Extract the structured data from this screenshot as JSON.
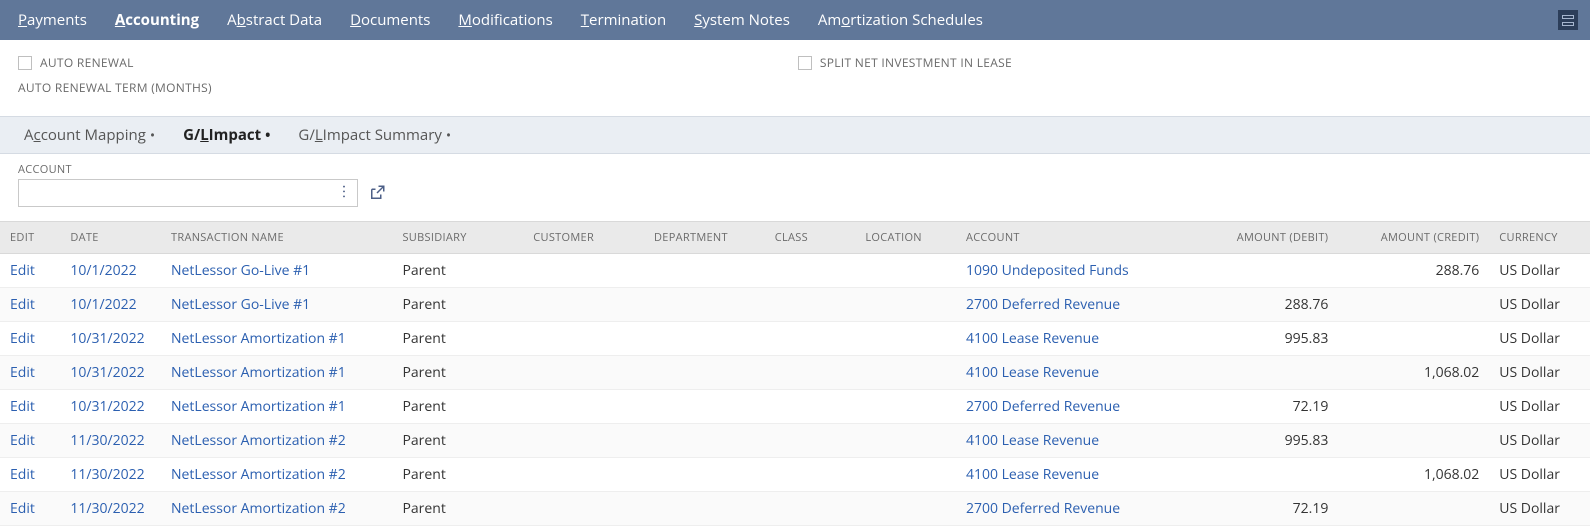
{
  "colors": {
    "nav_bg": "#607799",
    "link": "#2b5fb0",
    "subtab_bg": "#eaeef3",
    "thead_bg": "#eaeaea",
    "muted_text": "#6a6a6a"
  },
  "nav": {
    "tabs": [
      {
        "label": "Payments",
        "underline_index": 0,
        "active": false
      },
      {
        "label": "Accounting",
        "underline_index": 0,
        "active": true
      },
      {
        "label": "Abstract Data",
        "underline_index": 1,
        "active": false
      },
      {
        "label": "Documents",
        "underline_index": 0,
        "active": false
      },
      {
        "label": "Modifications",
        "underline_index": 0,
        "active": false
      },
      {
        "label": "Termination",
        "underline_index": 0,
        "active": false
      },
      {
        "label": "System Notes",
        "underline_index": 0,
        "active": false
      },
      {
        "label": "Amortization Schedules",
        "underline_index": 2,
        "active": false
      }
    ]
  },
  "options": {
    "auto_renewal_label": "AUTO RENEWAL",
    "split_label": "SPLIT NET INVESTMENT IN LEASE",
    "auto_renewal_term_label": "AUTO RENEWAL TERM (MONTHS)"
  },
  "subtabs": [
    {
      "label": "Account Mapping",
      "underline_index": 1,
      "has_dot": true,
      "active": false
    },
    {
      "label": "G/L Impact",
      "underline_index": 2,
      "has_dot": true,
      "active": true
    },
    {
      "label": "G/L Impact Summary",
      "underline_index": 2,
      "has_dot": true,
      "active": false
    }
  ],
  "filter": {
    "label": "ACCOUNT",
    "value": ""
  },
  "table": {
    "columns": [
      {
        "key": "edit",
        "label": "EDIT",
        "align": "left"
      },
      {
        "key": "date",
        "label": "DATE",
        "align": "left"
      },
      {
        "key": "trans",
        "label": "TRANSACTION NAME",
        "align": "left"
      },
      {
        "key": "subsidiary",
        "label": "SUBSIDIARY",
        "align": "left"
      },
      {
        "key": "customer",
        "label": "CUSTOMER",
        "align": "left"
      },
      {
        "key": "department",
        "label": "DEPARTMENT",
        "align": "left"
      },
      {
        "key": "class",
        "label": "CLASS",
        "align": "left"
      },
      {
        "key": "location",
        "label": "LOCATION",
        "align": "left"
      },
      {
        "key": "account",
        "label": "ACCOUNT",
        "align": "left"
      },
      {
        "key": "debit",
        "label": "AMOUNT (DEBIT)",
        "align": "right"
      },
      {
        "key": "credit",
        "label": "AMOUNT (CREDIT)",
        "align": "right"
      },
      {
        "key": "currency",
        "label": "CURRENCY",
        "align": "left"
      }
    ],
    "edit_label": "Edit",
    "rows": [
      {
        "date": "10/1/2022",
        "trans": "NetLessor Go-Live #1",
        "subsidiary": "Parent",
        "customer": "",
        "department": "",
        "class": "",
        "location": "",
        "account": "1090 Undeposited Funds",
        "debit": "",
        "credit": "288.76",
        "currency": "US Dollar"
      },
      {
        "date": "10/1/2022",
        "trans": "NetLessor Go-Live #1",
        "subsidiary": "Parent",
        "customer": "",
        "department": "",
        "class": "",
        "location": "",
        "account": "2700 Deferred Revenue",
        "debit": "288.76",
        "credit": "",
        "currency": "US Dollar"
      },
      {
        "date": "10/31/2022",
        "trans": "NetLessor Amortization #1",
        "subsidiary": "Parent",
        "customer": "",
        "department": "",
        "class": "",
        "location": "",
        "account": "4100 Lease Revenue",
        "debit": "995.83",
        "credit": "",
        "currency": "US Dollar"
      },
      {
        "date": "10/31/2022",
        "trans": "NetLessor Amortization #1",
        "subsidiary": "Parent",
        "customer": "",
        "department": "",
        "class": "",
        "location": "",
        "account": "4100 Lease Revenue",
        "debit": "",
        "credit": "1,068.02",
        "currency": "US Dollar"
      },
      {
        "date": "10/31/2022",
        "trans": "NetLessor Amortization #1",
        "subsidiary": "Parent",
        "customer": "",
        "department": "",
        "class": "",
        "location": "",
        "account": "2700 Deferred Revenue",
        "debit": "72.19",
        "credit": "",
        "currency": "US Dollar"
      },
      {
        "date": "11/30/2022",
        "trans": "NetLessor Amortization #2",
        "subsidiary": "Parent",
        "customer": "",
        "department": "",
        "class": "",
        "location": "",
        "account": "4100 Lease Revenue",
        "debit": "995.83",
        "credit": "",
        "currency": "US Dollar"
      },
      {
        "date": "11/30/2022",
        "trans": "NetLessor Amortization #2",
        "subsidiary": "Parent",
        "customer": "",
        "department": "",
        "class": "",
        "location": "",
        "account": "4100 Lease Revenue",
        "debit": "",
        "credit": "1,068.02",
        "currency": "US Dollar"
      },
      {
        "date": "11/30/2022",
        "trans": "NetLessor Amortization #2",
        "subsidiary": "Parent",
        "customer": "",
        "department": "",
        "class": "",
        "location": "",
        "account": "2700 Deferred Revenue",
        "debit": "72.19",
        "credit": "",
        "currency": "US Dollar"
      }
    ]
  }
}
